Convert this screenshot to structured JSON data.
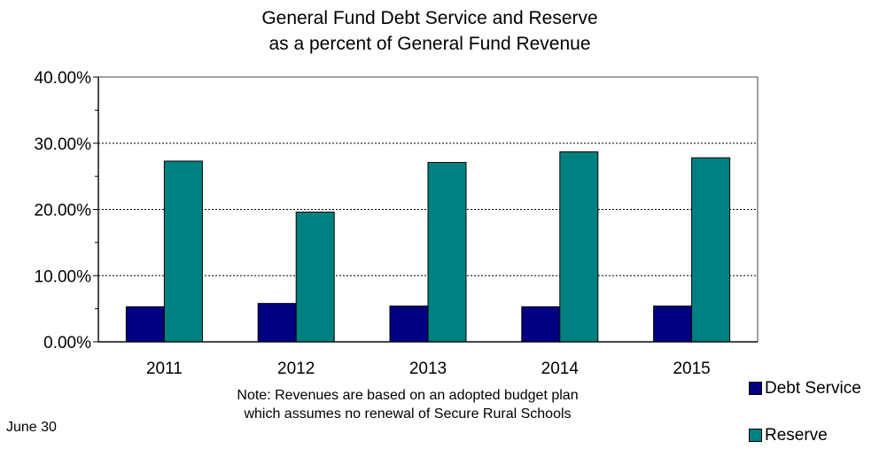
{
  "chart_data": {
    "type": "bar",
    "title_line1": "General Fund Debt Service and Reserve",
    "title_line2": "as a percent of General Fund Revenue",
    "categories": [
      "2011",
      "2012",
      "2013",
      "2014",
      "2015"
    ],
    "series": [
      {
        "name": "Debt Service",
        "color": "#000080",
        "values": [
          5.3,
          5.8,
          5.4,
          5.3,
          5.4
        ]
      },
      {
        "name": "Reserve",
        "color": "#008080",
        "values": [
          27.3,
          19.6,
          27.1,
          28.7,
          27.8
        ]
      }
    ],
    "ylim": [
      0,
      40
    ],
    "y_ticks": [
      "0.00%",
      "10.00%",
      "20.00%",
      "30.00%",
      "40.00%"
    ],
    "y_tick_values": [
      0,
      10,
      20,
      30,
      40
    ],
    "grid": true,
    "legend_position": "bottom-right",
    "note_line1": "Note:  Revenues are based on an adopted budget plan",
    "note_line2": "which assumes no renewal of Secure Rural Schools"
  },
  "footer": {
    "date": "June 30"
  }
}
